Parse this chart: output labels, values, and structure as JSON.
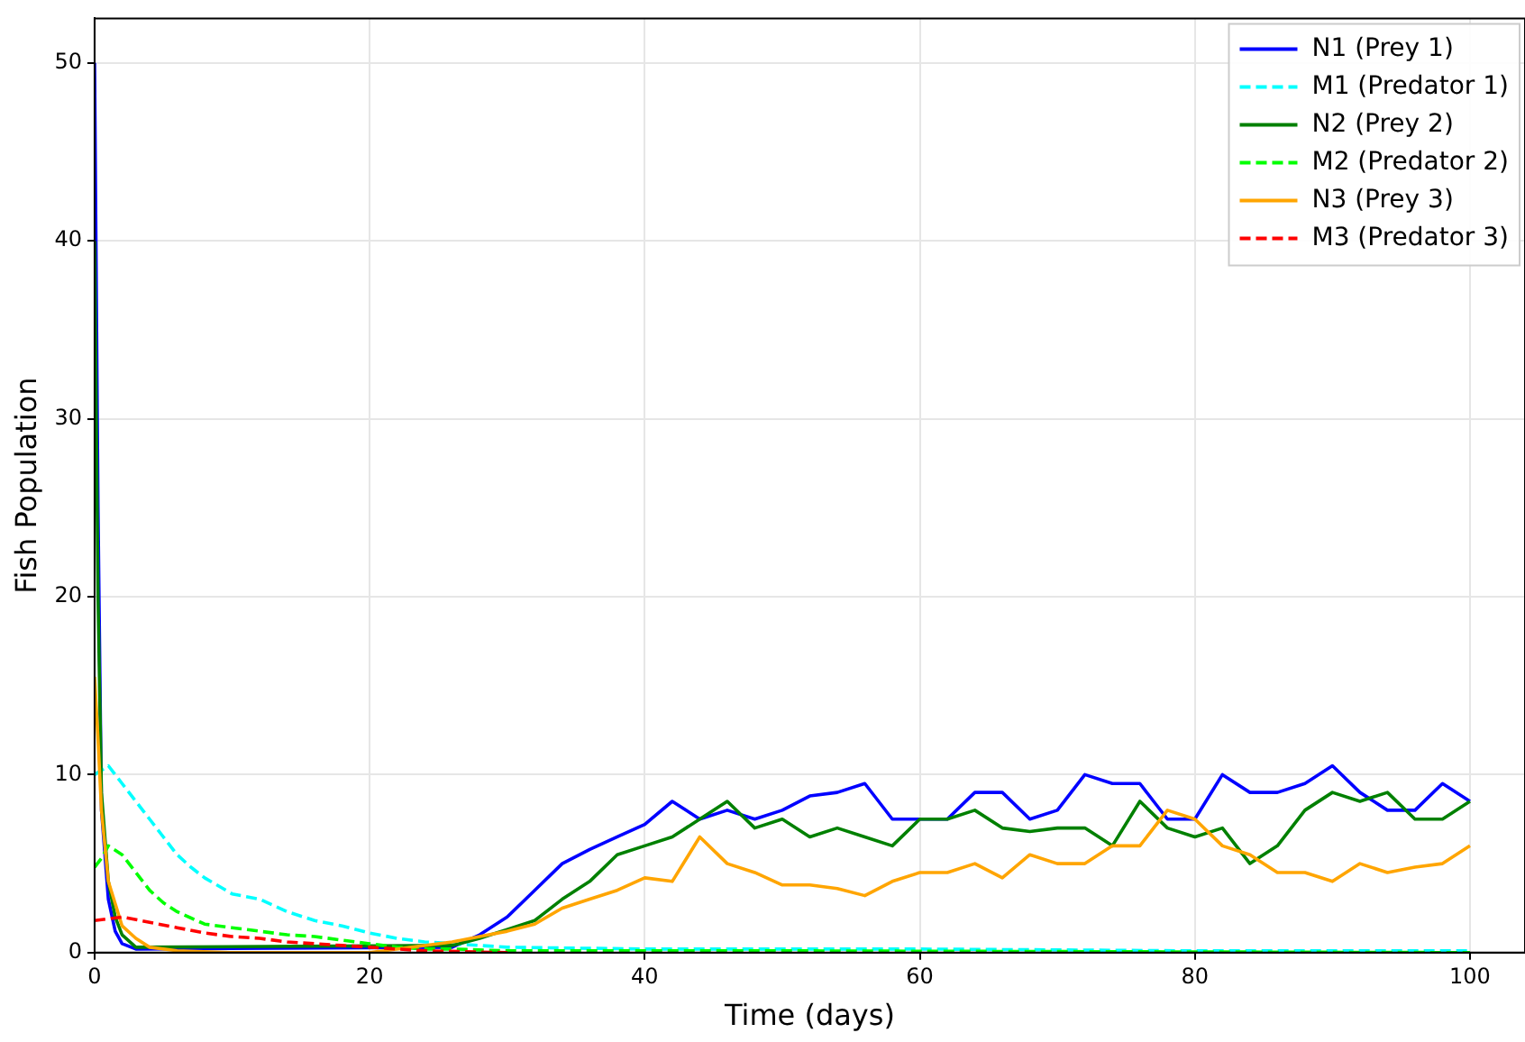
{
  "chart_data": {
    "type": "line",
    "xlabel": "Time (days)",
    "ylabel": "Fish Population",
    "xlim": [
      0,
      104
    ],
    "ylim": [
      0,
      52.5
    ],
    "xticks": [
      0,
      20,
      40,
      60,
      80,
      100
    ],
    "yticks": [
      0,
      10,
      20,
      30,
      40,
      50
    ],
    "grid": true,
    "legend": "top right",
    "marker": "none",
    "series": [
      {
        "name": "N1 (Prey 1)",
        "color": "#0000ff",
        "line_style": "solid",
        "x": [
          0,
          0.25,
          0.5,
          1,
          1.5,
          2,
          3,
          26,
          28,
          30,
          32,
          34,
          36,
          38,
          40,
          42,
          44,
          46,
          48,
          50,
          52,
          54,
          56,
          58,
          60,
          62,
          64,
          66,
          68,
          70,
          72,
          74,
          76,
          78,
          80,
          82,
          84,
          86,
          88,
          90,
          92,
          94,
          96,
          98,
          100
        ],
        "values": [
          50,
          25,
          8,
          3,
          1.2,
          0.5,
          0.2,
          0.3,
          1,
          2,
          3.5,
          5,
          5.8,
          6.5,
          7.2,
          8.5,
          7.5,
          8,
          7.5,
          8,
          8.8,
          9,
          9.5,
          7.5,
          7.5,
          7.5,
          9,
          9,
          7.5,
          8,
          10,
          9.5,
          9.5,
          7.5,
          7.5,
          10,
          9,
          9,
          9.5,
          10.5,
          9,
          8,
          8,
          9.5,
          8.5
        ]
      },
      {
        "name": "M1 (Predator 1)",
        "color": "#00ffff",
        "line_style": "dashed",
        "x": [
          0,
          1,
          2,
          3,
          4,
          5,
          6,
          7,
          8,
          10,
          12,
          14,
          16,
          18,
          20,
          22,
          24,
          26,
          28,
          30,
          40,
          60,
          80,
          100
        ],
        "values": [
          10,
          10.5,
          9.5,
          8.5,
          7.5,
          6.5,
          5.5,
          4.8,
          4.2,
          3.3,
          3,
          2.3,
          1.8,
          1.5,
          1.1,
          0.8,
          0.6,
          0.5,
          0.4,
          0.3,
          0.2,
          0.2,
          0.1,
          0.1
        ]
      },
      {
        "name": "N2 (Prey 2)",
        "color": "#008000",
        "line_style": "solid",
        "x": [
          0,
          0.25,
          0.5,
          1,
          1.5,
          2,
          3,
          26,
          28,
          30,
          32,
          34,
          36,
          38,
          40,
          42,
          44,
          46,
          48,
          50,
          52,
          54,
          56,
          58,
          60,
          62,
          64,
          66,
          68,
          70,
          72,
          74,
          76,
          78,
          80,
          82,
          84,
          86,
          88,
          90,
          92,
          94,
          96,
          98,
          100
        ],
        "values": [
          40,
          20,
          9,
          4,
          2,
          1,
          0.3,
          0.4,
          0.8,
          1.3,
          1.8,
          3,
          4,
          5.5,
          6,
          6.5,
          7.5,
          8.5,
          7,
          7.5,
          6.5,
          7,
          6.5,
          6,
          7.5,
          7.5,
          8,
          7,
          6.8,
          7,
          7,
          6,
          8.5,
          7,
          6.5,
          7,
          5,
          6,
          8,
          9,
          8.5,
          9,
          7.5,
          7.5,
          8.5
        ]
      },
      {
        "name": "M2 (Predator 2)",
        "color": "#00ff00",
        "line_style": "dashed",
        "x": [
          0,
          0.5,
          1,
          2,
          3,
          4,
          5,
          6,
          8,
          10,
          12,
          14,
          16,
          18,
          20,
          22,
          24,
          26,
          30,
          50,
          100
        ],
        "values": [
          4.8,
          5.3,
          6,
          5.5,
          4.5,
          3.5,
          2.8,
          2.3,
          1.6,
          1.4,
          1.2,
          1,
          0.9,
          0.7,
          0.5,
          0.3,
          0.2,
          0.2,
          0.1,
          0.1,
          0
        ]
      },
      {
        "name": "N3 (Prey 3)",
        "color": "#ffa500",
        "line_style": "solid",
        "x": [
          0,
          0.25,
          0.5,
          1,
          2,
          3,
          4,
          6,
          10,
          20,
          26,
          28,
          30,
          32,
          34,
          36,
          38,
          40,
          42,
          44,
          46,
          48,
          50,
          52,
          54,
          56,
          58,
          60,
          62,
          64,
          66,
          68,
          70,
          72,
          74,
          76,
          78,
          80,
          82,
          84,
          86,
          88,
          90,
          92,
          94,
          96,
          98,
          100
        ],
        "values": [
          15.5,
          12,
          8,
          4,
          1.5,
          0.8,
          0.3,
          0.1,
          0,
          0,
          0.6,
          0.9,
          1.2,
          1.6,
          2.5,
          3,
          3.5,
          4.2,
          4,
          6.5,
          5,
          4.5,
          3.8,
          3.8,
          3.6,
          3.2,
          4,
          4.5,
          4.5,
          5,
          4.2,
          5.5,
          5,
          5,
          6,
          6,
          8,
          7.5,
          6,
          5.5,
          4.5,
          4.5,
          4,
          5,
          4.5,
          4.8,
          5,
          6
        ]
      },
      {
        "name": "M3 (Predator 3)",
        "color": "#ff0000",
        "line_style": "dashed",
        "x": [
          0,
          2,
          4,
          6,
          8,
          10,
          12,
          14,
          16,
          18,
          20,
          22,
          24,
          30
        ],
        "values": [
          1.8,
          2,
          1.7,
          1.4,
          1.1,
          0.9,
          0.8,
          0.6,
          0.5,
          0.4,
          0.3,
          0.2,
          0.1,
          0
        ]
      }
    ]
  }
}
